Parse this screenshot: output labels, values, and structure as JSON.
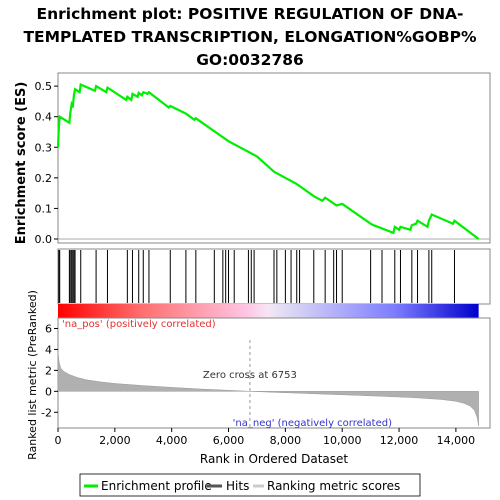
{
  "chart_data": {
    "type": "line",
    "title_lines": [
      "Enrichment plot: POSITIVE REGULATION OF DNA-",
      "TEMPLATED TRANSCRIPTION, ELONGATION%GOBP%",
      "GO:0032786"
    ],
    "es_panel": {
      "ylabel": "Enrichment score (ES)",
      "ylim": [
        0,
        0.52
      ],
      "yticks": [
        0.0,
        0.1,
        0.2,
        0.3,
        0.4,
        0.5
      ],
      "ytick_labels": [
        "0.0",
        "0.1",
        "0.2",
        "0.3",
        "0.4",
        "0.5"
      ],
      "series_name": "Enrichment profile",
      "points": [
        [
          0,
          0.3
        ],
        [
          30,
          0.37
        ],
        [
          60,
          0.4
        ],
        [
          400,
          0.38
        ],
        [
          430,
          0.41
        ],
        [
          480,
          0.44
        ],
        [
          520,
          0.43
        ],
        [
          560,
          0.47
        ],
        [
          600,
          0.49
        ],
        [
          760,
          0.48
        ],
        [
          800,
          0.505
        ],
        [
          1300,
          0.485
        ],
        [
          1340,
          0.5
        ],
        [
          1700,
          0.48
        ],
        [
          1740,
          0.495
        ],
        [
          2400,
          0.455
        ],
        [
          2440,
          0.465
        ],
        [
          2580,
          0.455
        ],
        [
          2620,
          0.475
        ],
        [
          2800,
          0.465
        ],
        [
          2840,
          0.478
        ],
        [
          2950,
          0.47
        ],
        [
          3000,
          0.48
        ],
        [
          3150,
          0.475
        ],
        [
          3200,
          0.48
        ],
        [
          3900,
          0.43
        ],
        [
          3950,
          0.435
        ],
        [
          4500,
          0.41
        ],
        [
          4800,
          0.39
        ],
        [
          4850,
          0.395
        ],
        [
          5000,
          0.385
        ],
        [
          6000,
          0.32
        ],
        [
          7000,
          0.27
        ],
        [
          7600,
          0.22
        ],
        [
          8400,
          0.18
        ],
        [
          9000,
          0.14
        ],
        [
          9300,
          0.125
        ],
        [
          9400,
          0.135
        ],
        [
          9800,
          0.11
        ],
        [
          10000,
          0.115
        ],
        [
          11000,
          0.05
        ],
        [
          11100,
          0.045
        ],
        [
          11800,
          0.02
        ],
        [
          11850,
          0.04
        ],
        [
          12000,
          0.03
        ],
        [
          12050,
          0.04
        ],
        [
          12400,
          0.03
        ],
        [
          12450,
          0.045
        ],
        [
          12600,
          0.05
        ],
        [
          12650,
          0.06
        ],
        [
          13000,
          0.04
        ],
        [
          13050,
          0.06
        ],
        [
          13150,
          0.08
        ],
        [
          13900,
          0.05
        ],
        [
          13950,
          0.06
        ],
        [
          14800,
          0.0
        ]
      ]
    },
    "hits_panel": {
      "series_name": "Hits",
      "hit_ranks": [
        30,
        60,
        400,
        430,
        480,
        520,
        560,
        600,
        800,
        1340,
        1740,
        2440,
        2620,
        2840,
        3000,
        3200,
        3950,
        4500,
        4850,
        5500,
        5800,
        5900,
        6000,
        6200,
        6700,
        6800,
        6900,
        7600,
        7700,
        8000,
        8200,
        8400,
        8500,
        9000,
        9400,
        9700,
        9800,
        10000,
        11000,
        11400,
        11850,
        12050,
        12450,
        12650,
        13050,
        13150,
        13950
      ]
    },
    "metric_panel": {
      "ylabel_line1": "Ranked list metric (PreRanked)",
      "ylim": [
        -3.5,
        7
      ],
      "yticks": [
        -2,
        0,
        2,
        4,
        6
      ],
      "ytick_labels": [
        "-2",
        "0",
        "2",
        "4",
        "6"
      ],
      "series_name": "Ranking metric scores",
      "profile": [
        [
          0,
          3.8
        ],
        [
          40,
          2.8
        ],
        [
          100,
          2.2
        ],
        [
          200,
          1.9
        ],
        [
          400,
          1.6
        ],
        [
          700,
          1.3
        ],
        [
          1000,
          1.1
        ],
        [
          1500,
          0.9
        ],
        [
          2000,
          0.75
        ],
        [
          3000,
          0.55
        ],
        [
          4000,
          0.38
        ],
        [
          5000,
          0.22
        ],
        [
          6000,
          0.1
        ],
        [
          6753,
          0.0
        ],
        [
          7500,
          -0.08
        ],
        [
          8500,
          -0.18
        ],
        [
          9500,
          -0.28
        ],
        [
          10500,
          -0.38
        ],
        [
          11500,
          -0.48
        ],
        [
          12500,
          -0.6
        ],
        [
          13500,
          -0.78
        ],
        [
          14000,
          -0.95
        ],
        [
          14300,
          -1.15
        ],
        [
          14500,
          -1.4
        ],
        [
          14650,
          -1.8
        ],
        [
          14750,
          -2.5
        ],
        [
          14800,
          -3.3
        ]
      ],
      "zero_cross_label": "Zero cross at 6753",
      "pos_label": "'na_pos' (positively correlated)",
      "neg_label": "'na_neg' (negatively correlated)"
    },
    "x_axis": {
      "xlabel": "Rank in Ordered Dataset",
      "xlim": [
        0,
        15200
      ],
      "xticks": [
        0,
        2000,
        4000,
        6000,
        8000,
        10000,
        12000,
        14000
      ],
      "xtick_labels": [
        "0",
        "2,000",
        "4,000",
        "6,000",
        "8,000",
        "10,000",
        "12,000",
        "14,000"
      ],
      "n_genes": 14800,
      "zero_cross": 6753
    },
    "legend": {
      "entries": [
        "Enrichment profile",
        "Hits",
        "Ranking metric scores"
      ],
      "placement": "bottom"
    },
    "colors": {
      "profile": "#00ee00",
      "hits": "#000000",
      "metric_fill": "#b0b0b0",
      "pos": "#ff0000",
      "neg": "#0000ff"
    }
  }
}
